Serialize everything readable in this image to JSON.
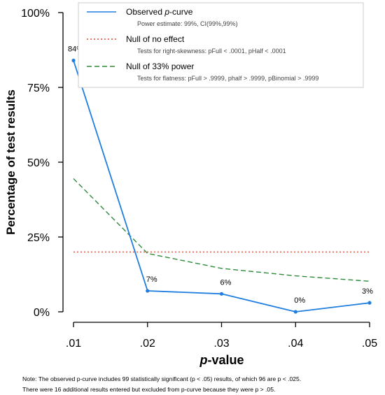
{
  "chart_data": {
    "type": "line",
    "xlabel": "p-value",
    "ylabel": "Percentage of test results",
    "x": [
      0.01,
      0.02,
      0.03,
      0.04,
      0.05
    ],
    "x_tick_labels": [
      ".01",
      ".02",
      ".03",
      ".04",
      ".05"
    ],
    "y_ticks": [
      0,
      25,
      50,
      75,
      100
    ],
    "y_tick_labels": [
      "0%",
      "25%",
      "50%",
      "75%",
      "100%"
    ],
    "ylim": [
      0,
      100
    ],
    "xlim": [
      0.01,
      0.05
    ],
    "series": [
      {
        "name": "Observed p-curve",
        "values": [
          84,
          7,
          6,
          0,
          3
        ],
        "point_labels": [
          "84%",
          "7%",
          "6%",
          "0%",
          "3%"
        ],
        "color": "#1f7ee0",
        "style": "solid",
        "markers": true
      },
      {
        "name": "Null of no effect",
        "values": [
          20,
          20,
          20,
          20,
          20
        ],
        "color": "#e8412f",
        "style": "dotted"
      },
      {
        "name": "Null of 33% power",
        "values": [
          44.5,
          19.5,
          14.5,
          12,
          10.2
        ],
        "color": "#2e8b3a",
        "style": "dashed"
      }
    ],
    "legend": {
      "placement": "top-right",
      "entries": [
        {
          "label_pre": "Observed ",
          "label_italic": "p",
          "label_post": "-curve",
          "sub": "Power estimate: 99%, CI(99%,99%)"
        },
        {
          "label_pre": "Null of no effect",
          "label_italic": "",
          "label_post": "",
          "sub": "Tests for right-skewness: pFull < .0001, pHalf < .0001"
        },
        {
          "label_pre": "Null of 33% power",
          "label_italic": "",
          "label_post": "",
          "sub": "Tests for flatness: pFull > .9999, phalf > .9999, pBinomial > .9999"
        }
      ]
    }
  },
  "note": {
    "line1": "Note: The observed p-curve includes 99 statistically significant (p < .05) results, of which 96 are p < .025.",
    "line2": "There were 16 additional results entered but excluded from p-curve because they were p > .05."
  },
  "colors": {
    "observed": "#1f7ee0",
    "null_effect": "#e8412f",
    "null_power": "#2e8b3a",
    "axis": "#000000"
  }
}
